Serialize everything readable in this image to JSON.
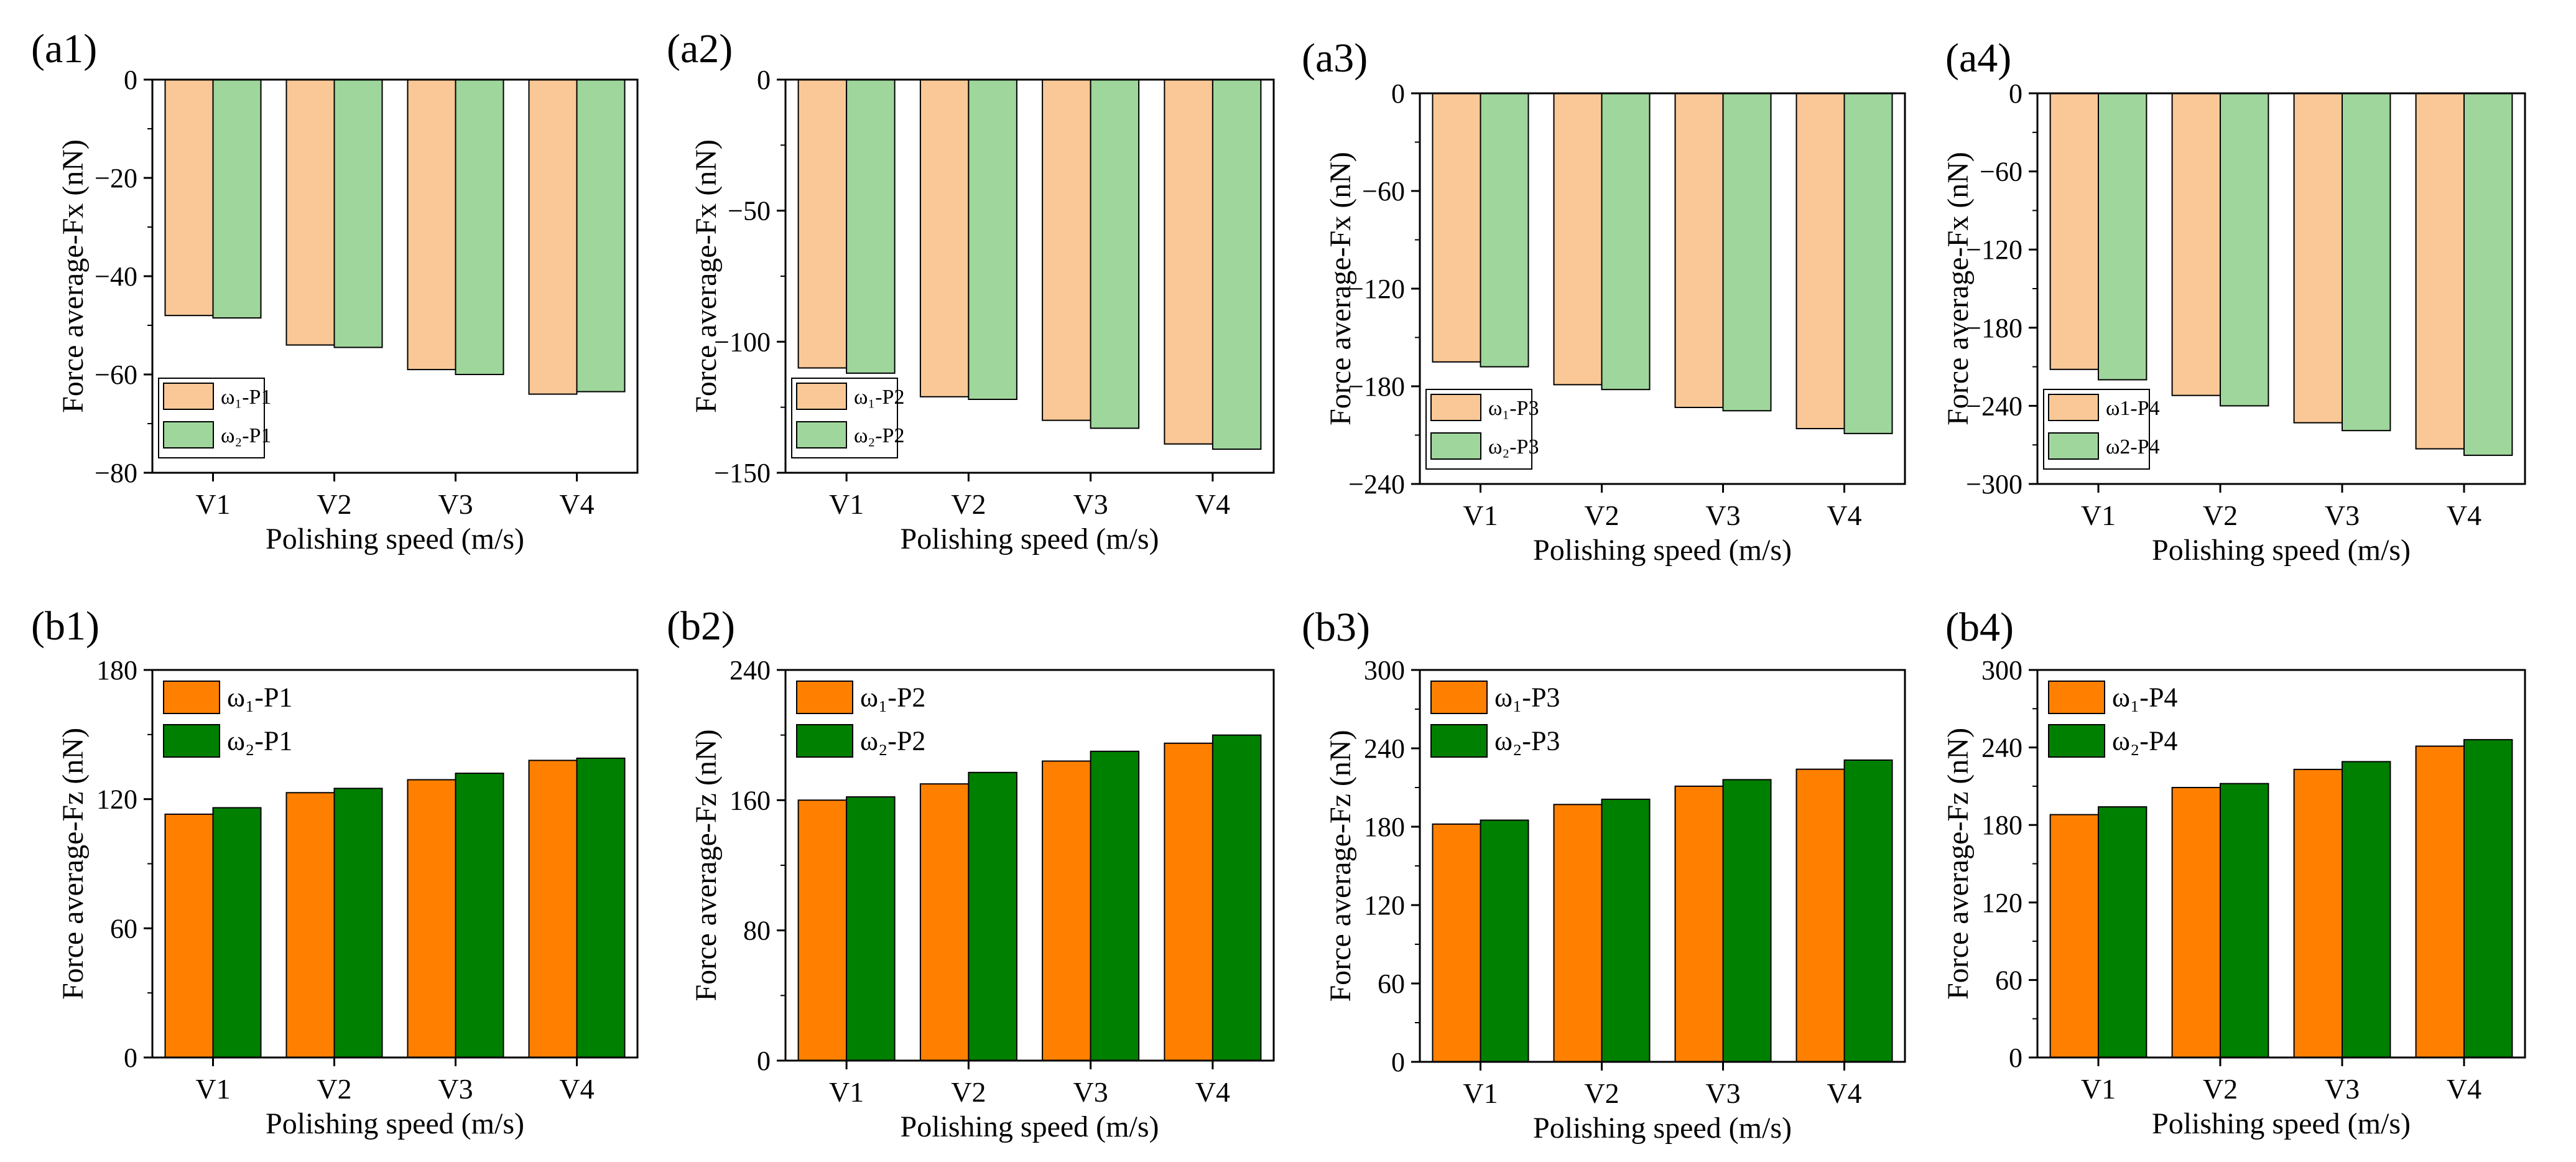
{
  "figure": {
    "x_axis_label": "Polishing speed (m/s)",
    "fx_axis_label": "Force average-Fx (nN)",
    "fz_axis_label": "Force average-Fz (nN)",
    "colors": {
      "fx_w1": "#f9c896",
      "fx_w2": "#9ed69b",
      "fz_w1": "#ff8000",
      "fz_w2": "#008000"
    }
  },
  "chart_data": [
    {
      "id": "a1",
      "panel_label": "(a1)",
      "type": "bar",
      "quantity": "Fx",
      "categories": [
        "V1",
        "V2",
        "V3",
        "V4"
      ],
      "series": [
        {
          "name": "ω₁-P1",
          "values": [
            -48,
            -54,
            -59,
            -64
          ]
        },
        {
          "name": "ω₂-P1",
          "values": [
            -48.5,
            -54.5,
            -60,
            -63.5
          ]
        }
      ],
      "xlabel": "Polishing speed (m/s)",
      "ylabel": "Force average-Fx (nN)",
      "ylim": [
        -80,
        0
      ],
      "yticks": [
        0,
        -20,
        -40,
        -60,
        -80
      ]
    },
    {
      "id": "a2",
      "panel_label": "(a2)",
      "type": "bar",
      "quantity": "Fx",
      "categories": [
        "V1",
        "V2",
        "V3",
        "V4"
      ],
      "series": [
        {
          "name": "ω₁-P2",
          "values": [
            -110,
            -121,
            -130,
            -139
          ]
        },
        {
          "name": "ω₂-P2",
          "values": [
            -112,
            -122,
            -133,
            -141
          ]
        }
      ],
      "xlabel": "Polishing speed (m/s)",
      "ylabel": "Force average-Fx (nN)",
      "ylim": [
        -150,
        0
      ],
      "yticks": [
        0,
        -50,
        -100,
        -150
      ]
    },
    {
      "id": "a3",
      "panel_label": "(a3)",
      "type": "bar",
      "quantity": "Fx",
      "categories": [
        "V1",
        "V2",
        "V3",
        "V4"
      ],
      "series": [
        {
          "name": "ω₁-P3",
          "values": [
            -165,
            -179,
            -193,
            -206
          ]
        },
        {
          "name": "ω₂-P3",
          "values": [
            -168,
            -182,
            -195,
            -209
          ]
        }
      ],
      "xlabel": "Polishing speed (m/s)",
      "ylabel": "Force average-Fx (nN)",
      "ylim": [
        -240,
        0
      ],
      "yticks": [
        0,
        -60,
        -120,
        -180,
        -240
      ]
    },
    {
      "id": "a4",
      "panel_label": "(a4)",
      "type": "bar",
      "quantity": "Fx",
      "categories": [
        "V1",
        "V2",
        "V3",
        "V4"
      ],
      "series": [
        {
          "name": "ω1-P4",
          "values": [
            -212,
            -232,
            -253,
            -273
          ]
        },
        {
          "name": "ω2-P4",
          "values": [
            -220,
            -240,
            -259,
            -278
          ]
        }
      ],
      "xlabel": "Polishing speed (m/s)",
      "ylabel": "Force average-Fx (nN)",
      "ylim": [
        -300,
        0
      ],
      "yticks": [
        0,
        -60,
        -120,
        -180,
        -240,
        -300
      ]
    },
    {
      "id": "b1",
      "panel_label": "(b1)",
      "type": "bar",
      "quantity": "Fz",
      "categories": [
        "V1",
        "V2",
        "V3",
        "V4"
      ],
      "series": [
        {
          "name": "ω₁-P1",
          "values": [
            113,
            123,
            129,
            138
          ]
        },
        {
          "name": "ω₂-P1",
          "values": [
            116,
            125,
            132,
            139
          ]
        }
      ],
      "xlabel": "Polishing speed (m/s)",
      "ylabel": "Force average-Fz (nN)",
      "ylim": [
        0,
        180
      ],
      "yticks": [
        0,
        60,
        120,
        180
      ]
    },
    {
      "id": "b2",
      "panel_label": "(b2)",
      "type": "bar",
      "quantity": "Fz",
      "categories": [
        "V1",
        "V2",
        "V3",
        "V4"
      ],
      "series": [
        {
          "name": "ω₁-P2",
          "values": [
            160,
            170,
            184,
            195
          ]
        },
        {
          "name": "ω₂-P2",
          "values": [
            162,
            177,
            190,
            200
          ]
        }
      ],
      "xlabel": "Polishing speed (m/s)",
      "ylabel": "Force average-Fz (nN)",
      "ylim": [
        0,
        240
      ],
      "yticks": [
        0,
        80,
        160,
        240
      ]
    },
    {
      "id": "b3",
      "panel_label": "(b3)",
      "type": "bar",
      "quantity": "Fz",
      "categories": [
        "V1",
        "V2",
        "V3",
        "V4"
      ],
      "series": [
        {
          "name": "ω₁-P3",
          "values": [
            182,
            197,
            211,
            224
          ]
        },
        {
          "name": "ω₂-P3",
          "values": [
            185,
            201,
            216,
            231
          ]
        }
      ],
      "xlabel": "Polishing speed (m/s)",
      "ylabel": "Force average-Fz (nN)",
      "ylim": [
        0,
        300
      ],
      "yticks": [
        0,
        60,
        120,
        180,
        240,
        300
      ]
    },
    {
      "id": "b4",
      "panel_label": "(b4)",
      "type": "bar",
      "quantity": "Fz",
      "categories": [
        "V1",
        "V2",
        "V3",
        "V4"
      ],
      "series": [
        {
          "name": "ω₁-P4",
          "values": [
            188,
            209,
            223,
            241
          ]
        },
        {
          "name": "ω₂-P4",
          "values": [
            194,
            212,
            229,
            246
          ]
        }
      ],
      "xlabel": "Polishing speed (m/s)",
      "ylabel": "Force average-Fz (nN)",
      "ylim": [
        0,
        300
      ],
      "yticks": [
        0,
        60,
        120,
        180,
        240,
        300
      ]
    }
  ]
}
